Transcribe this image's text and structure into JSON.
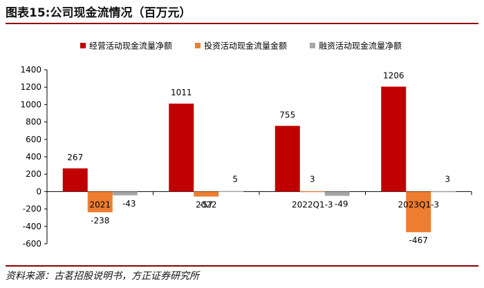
{
  "title": "图表15:公司现金流情况（百万元）",
  "source": "资料来源：古茗招股说明书，方正证券研究所",
  "colors": {
    "series1": "#c00000",
    "series2": "#ed7d31",
    "series3": "#a5a5a5",
    "rule": "#8b0000"
  },
  "chart_data": {
    "type": "bar",
    "categories": [
      "2021",
      "2022",
      "2022Q1-3",
      "2023Q1-3"
    ],
    "series": [
      {
        "name": "经营活动现金流量净额",
        "values": [
          267,
          1011,
          755,
          1206
        ]
      },
      {
        "name": "投资活动现金流量金额",
        "values": [
          -238,
          -57,
          3,
          -467
        ]
      },
      {
        "name": "融资活动现金流量净额",
        "values": [
          -43,
          5,
          -49,
          3
        ]
      }
    ],
    "data_labels": [
      [
        "267",
        "1011",
        "755",
        "1206"
      ],
      [
        "-238",
        "-57",
        "3",
        "-467"
      ],
      [
        "-43",
        "5",
        "-49",
        "3"
      ]
    ],
    "yticks": [
      1400,
      1200,
      1000,
      800,
      600,
      400,
      200,
      0,
      -200,
      -400,
      -600
    ],
    "ylim": [
      -600,
      1400
    ],
    "legend_position": "top-center",
    "grid": false
  }
}
